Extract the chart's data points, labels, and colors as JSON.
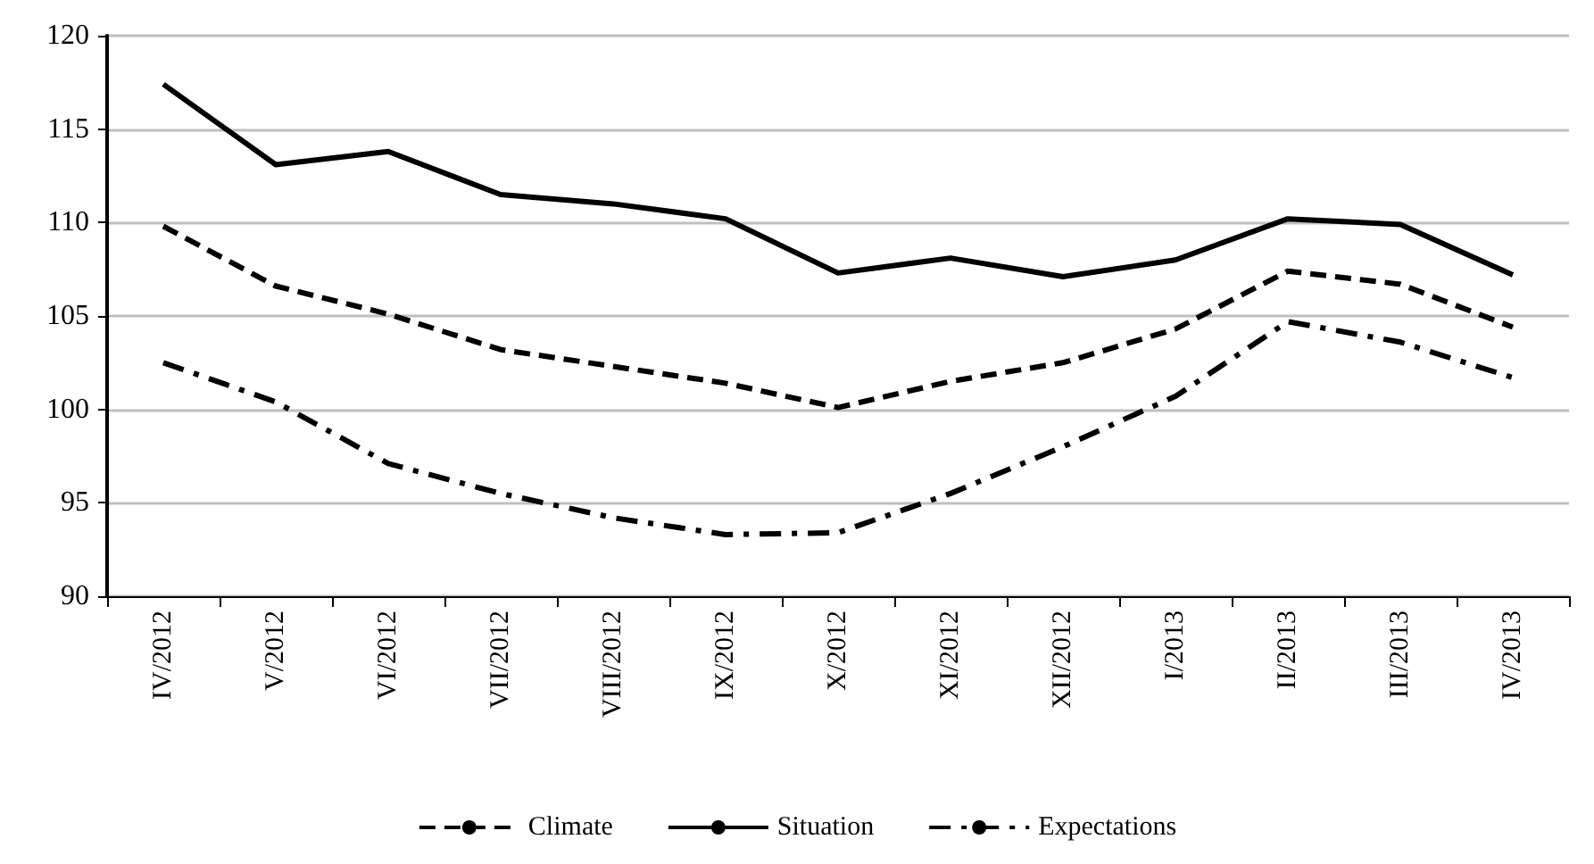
{
  "chart_data": {
    "type": "line",
    "categories": [
      "IV/2012",
      "V/2012",
      "VI/2012",
      "VII/2012",
      "VIII/2012",
      "IX/2012",
      "X/2012",
      "XI/2012",
      "XII/2012",
      "I/2013",
      "II/2013",
      "III/2013",
      "IV/2013"
    ],
    "series": [
      {
        "name": "Climate",
        "color": "#000000",
        "line_style": "dashed",
        "values": [
          109.8,
          106.6,
          105.1,
          103.2,
          102.3,
          101.4,
          100.1,
          101.5,
          102.5,
          104.3,
          107.4,
          106.7,
          104.4
        ]
      },
      {
        "name": "Situation",
        "color": "#000000",
        "line_style": "solid",
        "values": [
          117.4,
          113.1,
          113.8,
          111.5,
          111.0,
          110.2,
          107.3,
          108.1,
          107.1,
          108.0,
          110.2,
          109.9,
          107.2
        ]
      },
      {
        "name": "Expectations",
        "color": "#000000",
        "line_style": "dashdot",
        "values": [
          102.5,
          100.4,
          97.1,
          95.5,
          94.2,
          93.3,
          93.4,
          95.5,
          98.0,
          100.7,
          104.7,
          103.6,
          101.7
        ]
      }
    ],
    "ylim": [
      90,
      120
    ],
    "yticks": [
      90,
      95,
      100,
      105,
      110,
      115,
      120
    ],
    "grid": "y",
    "legend": "bottom",
    "marker": "none"
  }
}
